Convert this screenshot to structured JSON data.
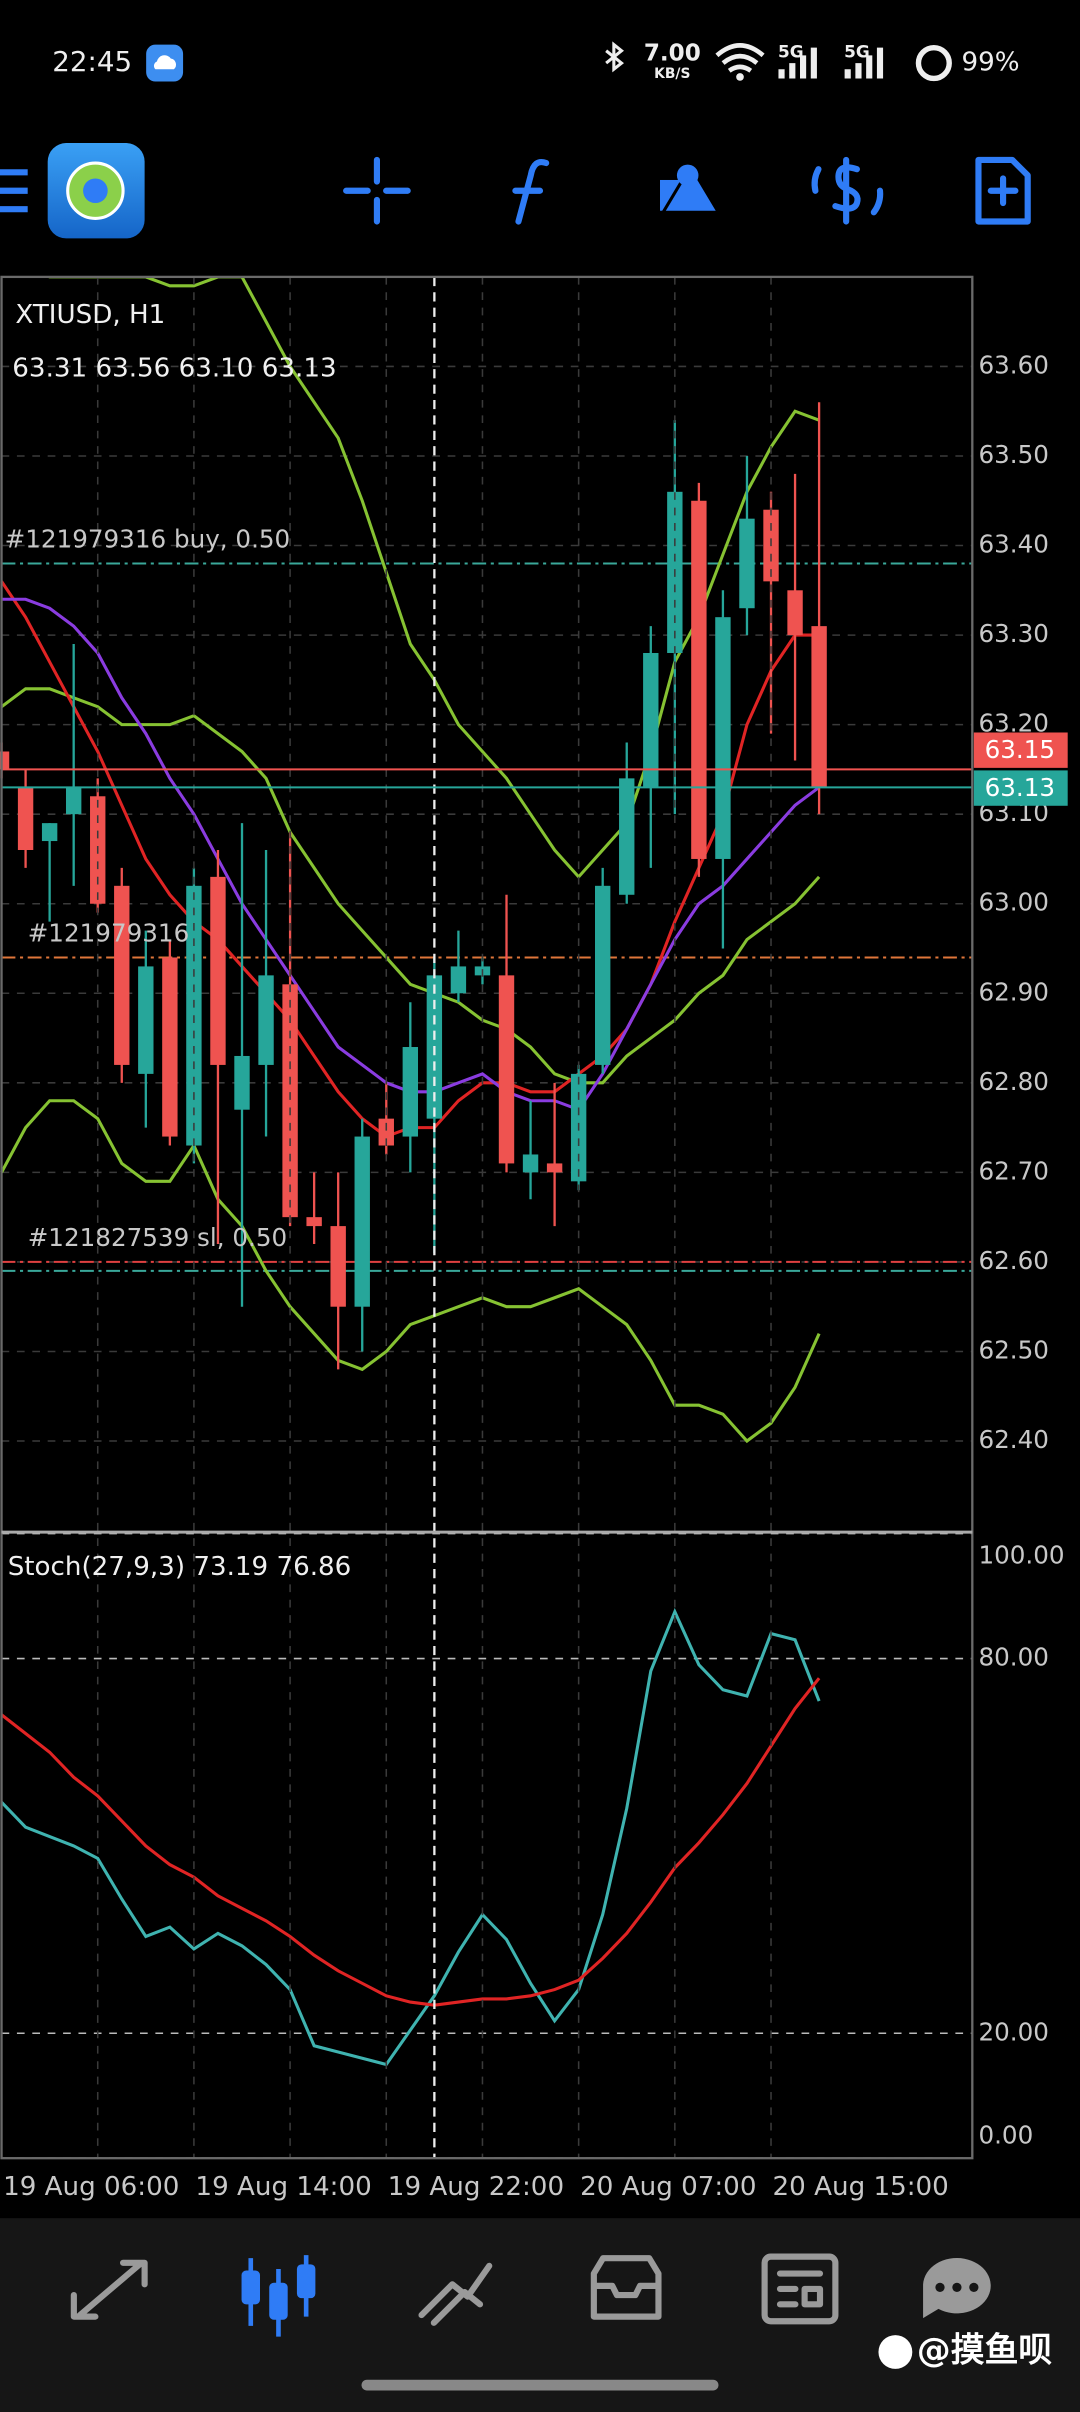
{
  "status_bar": {
    "time": "22:45",
    "speed": "7.00",
    "speed_unit": "KB/S",
    "network_1": "5G",
    "network_2": "5G",
    "battery": "99%"
  },
  "watermark": "@摸鱼呗",
  "chart_data": [
    {
      "type": "candlestick",
      "title": "XTIUSD, H1",
      "ohlc_label": "63.31 63.56 63.10 63.13",
      "categories": [
        "19 Aug 06:00",
        null,
        null,
        null,
        null,
        null,
        null,
        null,
        "19 Aug 14:00",
        null,
        null,
        null,
        null,
        null,
        null,
        null,
        "19 Aug 22:00",
        null,
        null,
        null,
        null,
        null,
        null,
        null,
        "20 Aug 07:00",
        null,
        null,
        null,
        null,
        null,
        null,
        null,
        "20 Aug 15:00",
        null,
        null
      ],
      "open": [
        63.17,
        63.13,
        63.07,
        63.1,
        63.12,
        63.02,
        62.81,
        62.94,
        62.73,
        63.03,
        62.77,
        62.82,
        62.91,
        62.65,
        62.64,
        62.55,
        62.76,
        62.74,
        62.76,
        62.9,
        62.92,
        62.92,
        62.7,
        62.71,
        62.69,
        62.82,
        63.01,
        63.13,
        63.28,
        63.45,
        63.05,
        63.33,
        63.44,
        63.35,
        63.31
      ],
      "high": [
        63.18,
        63.15,
        63.09,
        63.29,
        63.14,
        63.04,
        62.97,
        62.96,
        63.04,
        63.06,
        63.09,
        63.06,
        63.08,
        62.7,
        62.7,
        62.76,
        62.8,
        62.89,
        62.94,
        62.97,
        62.94,
        63.01,
        62.78,
        62.8,
        62.82,
        63.04,
        63.18,
        63.31,
        63.54,
        63.47,
        63.35,
        63.5,
        63.46,
        63.48,
        63.56
      ],
      "low": [
        63.14,
        63.04,
        62.98,
        63.02,
        62.99,
        62.8,
        62.75,
        62.73,
        62.71,
        62.62,
        62.55,
        62.74,
        62.64,
        62.62,
        62.48,
        62.5,
        62.72,
        62.7,
        62.61,
        62.89,
        62.91,
        62.7,
        62.67,
        62.64,
        62.68,
        62.81,
        63.0,
        63.04,
        63.1,
        63.03,
        62.95,
        63.3,
        63.19,
        63.16,
        63.1
      ],
      "close": [
        63.15,
        63.06,
        63.09,
        63.13,
        63.0,
        62.82,
        62.93,
        62.74,
        63.02,
        62.82,
        62.83,
        62.92,
        62.65,
        62.64,
        62.55,
        62.74,
        62.73,
        62.84,
        62.92,
        62.93,
        62.93,
        62.71,
        62.72,
        62.7,
        62.81,
        63.02,
        63.14,
        63.28,
        63.46,
        63.05,
        63.32,
        63.43,
        63.36,
        63.3,
        63.13
      ],
      "up_color": "#26a69a",
      "down_color": "#ef5350",
      "series": [
        {
          "color": "#86c232",
          "values": [
            63.72,
            63.71,
            63.7,
            63.7,
            63.7,
            63.7,
            63.7,
            63.69,
            63.69,
            63.7,
            63.7,
            63.65,
            63.6,
            63.56,
            63.52,
            63.45,
            63.37,
            63.29,
            63.25,
            63.2,
            63.17,
            63.14,
            63.1,
            63.06,
            63.03,
            63.06,
            63.09,
            63.17,
            63.27,
            63.32,
            63.39,
            63.46,
            63.51,
            63.55,
            63.54
          ]
        },
        {
          "color": "#86c232",
          "values": [
            63.22,
            63.24,
            63.24,
            63.23,
            63.22,
            63.2,
            63.2,
            63.2,
            63.21,
            63.19,
            63.17,
            63.14,
            63.08,
            63.04,
            63.0,
            62.97,
            62.94,
            62.91,
            62.9,
            62.89,
            62.87,
            62.86,
            62.84,
            62.81,
            62.8,
            62.8,
            62.83,
            62.85,
            62.87,
            62.9,
            62.92,
            62.96,
            62.98,
            63.0,
            63.03
          ]
        },
        {
          "color": "#86c232",
          "values": [
            62.7,
            62.75,
            62.78,
            62.78,
            62.76,
            62.71,
            62.69,
            62.69,
            62.73,
            62.67,
            62.64,
            62.59,
            62.55,
            62.52,
            62.49,
            62.48,
            62.5,
            62.53,
            62.54,
            62.55,
            62.56,
            62.55,
            62.55,
            62.56,
            62.57,
            62.55,
            62.53,
            62.49,
            62.44,
            62.44,
            62.43,
            62.4,
            62.42,
            62.46,
            62.52
          ]
        },
        {
          "color": "#e02424",
          "values": [
            63.36,
            63.32,
            63.27,
            63.22,
            63.17,
            63.11,
            63.05,
            63.01,
            62.98,
            62.96,
            62.93,
            62.9,
            62.87,
            62.83,
            62.79,
            62.76,
            62.74,
            62.75,
            62.75,
            62.78,
            62.8,
            62.8,
            62.79,
            62.79,
            62.81,
            62.83,
            62.86,
            62.91,
            62.98,
            63.04,
            63.1,
            63.2,
            63.26,
            63.3,
            63.3
          ]
        },
        {
          "color": "#8a3ce0",
          "values": [
            63.34,
            63.34,
            63.33,
            63.31,
            63.28,
            63.23,
            63.19,
            63.14,
            63.1,
            63.05,
            63.0,
            62.96,
            62.92,
            62.88,
            62.84,
            62.82,
            62.8,
            62.79,
            62.79,
            62.8,
            62.81,
            62.79,
            62.78,
            62.78,
            62.77,
            62.81,
            62.86,
            62.91,
            62.96,
            63.0,
            63.02,
            63.05,
            63.08,
            63.11,
            63.13
          ]
        }
      ],
      "levels": [
        {
          "label": "#121979316 buy, 0.50",
          "value": 63.38,
          "color": "#3aa89a"
        },
        {
          "label": "#121979316",
          "value": 62.94,
          "color": "#e0763a"
        },
        {
          "label": "#121827539 sl, 0.50",
          "value": 62.6,
          "color": "#e04040"
        },
        {
          "value": 62.59,
          "color": "#3aa89a"
        }
      ],
      "ask": 63.15,
      "ask_color": "#ef5350",
      "bid": 63.13,
      "bid_color": "#26a69a",
      "ylim": [
        62.3,
        63.7
      ],
      "yticks": [
        {
          "value": 63.6,
          "label": "63.60"
        },
        {
          "value": 63.5,
          "label": "63.50"
        },
        {
          "value": 63.4,
          "label": "63.40"
        },
        {
          "value": 63.3,
          "label": "63.30"
        },
        {
          "value": 63.2,
          "label": "63.20"
        },
        {
          "value": 63.1,
          "label": "63.10"
        },
        {
          "value": 63.0,
          "label": "63.00"
        },
        {
          "value": 62.9,
          "label": "62.90"
        },
        {
          "value": 62.8,
          "label": "62.80"
        },
        {
          "value": 62.7,
          "label": "62.70"
        },
        {
          "value": 62.6,
          "label": "62.60"
        },
        {
          "value": 62.5,
          "label": "62.50"
        },
        {
          "value": 62.4,
          "label": "62.40"
        }
      ],
      "grid": true
    },
    {
      "type": "line",
      "title": "Stoch(27,9,3) 73.19 76.86",
      "series": [
        {
          "color": "#3fb3b0",
          "values": [
            57,
            53,
            51.5,
            50,
            48,
            41.5,
            35.5,
            37,
            33.5,
            36,
            34,
            31,
            27,
            18,
            17,
            16,
            15,
            20.5,
            26,
            33,
            39,
            35,
            28,
            22,
            27,
            39,
            56,
            78,
            87.5,
            79,
            75,
            74,
            84,
            83,
            73.19
          ]
        },
        {
          "color": "#e02424",
          "values": [
            71,
            68,
            65,
            61,
            58,
            54,
            50,
            47,
            45,
            42,
            40,
            38,
            35.5,
            32.5,
            30,
            28,
            26,
            25,
            24.5,
            25,
            25.5,
            25.5,
            26,
            27,
            28.5,
            32,
            36,
            41,
            46.5,
            50.5,
            55,
            60,
            66,
            72,
            76.86
          ]
        }
      ],
      "ylim": [
        0,
        100
      ],
      "yticks": [
        {
          "value": 100,
          "label": "100.00"
        },
        {
          "value": 80,
          "label": "80.00"
        },
        {
          "value": 20,
          "label": "20.00"
        },
        {
          "value": 0,
          "label": "0.00"
        }
      ],
      "grid": true
    }
  ]
}
